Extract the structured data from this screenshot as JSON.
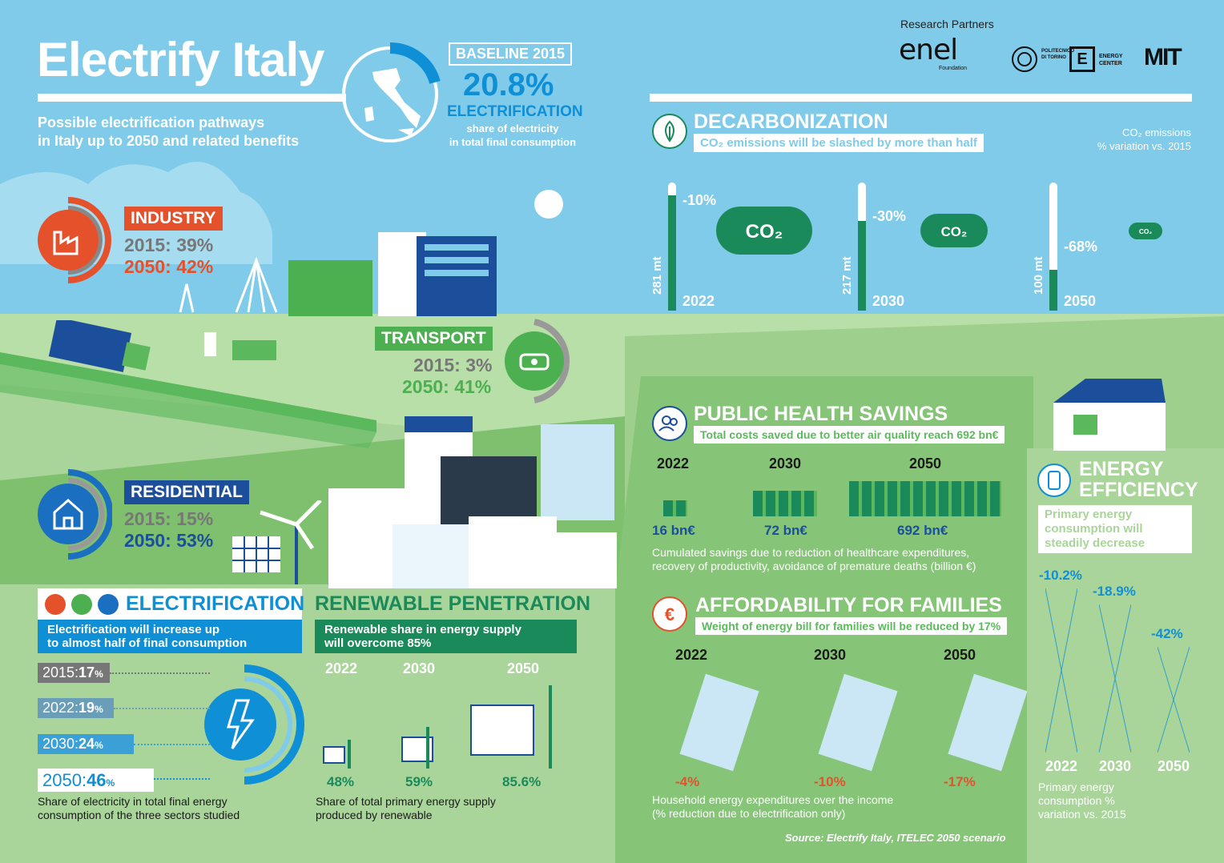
{
  "header": {
    "title": "Electrify Italy",
    "subtitle_line1": "Possible electrification pathways",
    "subtitle_line2": "in Italy up to 2050 and related benefits",
    "baseline_label": "BASELINE 2015",
    "baseline_value": "20.8%",
    "baseline_metric": "ELECTRIFICATION",
    "baseline_desc1": "share of electricity",
    "baseline_desc2": "in total final consumption",
    "baseline_fraction": 0.208
  },
  "partners": {
    "label": "Research Partners",
    "logo1": "enel",
    "logo1_sub": "Foundation",
    "logo2_text1": "POLITECNICO",
    "logo2_text2": "DI TORINO",
    "logo3_text1": "ENERGY",
    "logo3_text2": "CENTER",
    "logo4": "MIT"
  },
  "industry": {
    "label": "INDUSTRY",
    "y2015": "2015: 39%",
    "y2050": "2050: 42%"
  },
  "transport": {
    "label": "TRANSPORT",
    "y2015": "2015: 3%",
    "y2050": "2050: 41%"
  },
  "residential": {
    "label": "RESIDENTIAL",
    "y2015": "2015: 15%",
    "y2050": "2050: 53%"
  },
  "decarb": {
    "title": "DECARBONIZATION",
    "subtitle": "CO₂ emissions will be slashed by more than half",
    "legend1": "CO₂ emissions",
    "legend2": "% variation vs. 2015",
    "cloud_label": "CO₂",
    "bars": [
      {
        "year": "2022",
        "value": "281 mt",
        "pct": "-10%",
        "level": 0.9
      },
      {
        "year": "2030",
        "value": "217 mt",
        "pct": "-30%",
        "level": 0.7
      },
      {
        "year": "2050",
        "value": "100 mt",
        "pct": "-68%",
        "level": 0.32
      }
    ]
  },
  "health": {
    "title": "PUBLIC HEALTH SAVINGS",
    "subtitle": "Total costs saved due to better air quality reach 692 bn€",
    "items": [
      {
        "year": "2022",
        "value": "16 bn€"
      },
      {
        "year": "2030",
        "value": "72 bn€"
      },
      {
        "year": "2050",
        "value": "692 bn€"
      }
    ],
    "note1": "Cumulated savings due to reduction of healthcare expenditures,",
    "note2": "recovery of productivity, avoidance of premature deaths (billion €)"
  },
  "afford": {
    "title": "AFFORDABILITY FOR FAMILIES",
    "subtitle": "Weight of energy bill for families will be reduced by 17%",
    "items": [
      {
        "year": "2022",
        "value": "-4%"
      },
      {
        "year": "2030",
        "value": "-10%"
      },
      {
        "year": "2050",
        "value": "-17%"
      }
    ],
    "note1": "Household energy expenditures over the income",
    "note2": "(% reduction due to electrification only)",
    "source": "Source: Electrify Italy, ITELEC 2050 scenario"
  },
  "efficiency": {
    "title1": "ENERGY",
    "title2": "EFFICIENCY",
    "subtitle1": "Primary energy",
    "subtitle2": "consumption will",
    "subtitle3": "steadily decrease",
    "items": [
      {
        "year": "2022",
        "value": "-10.2%"
      },
      {
        "year": "2030",
        "value": "-18.9%"
      },
      {
        "year": "2050",
        "value": "-42%"
      }
    ],
    "note1": "Primary energy",
    "note2": "consumption %",
    "note3": "variation vs. 2015"
  },
  "electrification": {
    "title": "ELECTRIFICATION",
    "subtitle1": "Electrification will increase up",
    "subtitle2": "to almost half of final consumption",
    "rows": [
      {
        "year": "2015:",
        "value": "17",
        "unit": "%"
      },
      {
        "year": "2022:",
        "value": "19",
        "unit": "%"
      },
      {
        "year": "2030:",
        "value": "24",
        "unit": "%"
      },
      {
        "year": "2050:",
        "value": "46",
        "unit": "%"
      }
    ],
    "note1": "Share of electricity in total final energy",
    "note2": "consumption of the three sectors studied"
  },
  "renewable": {
    "title": "RENEWABLE PENETRATION",
    "subtitle1": "Renewable share in energy supply",
    "subtitle2": "will overcome 85%",
    "items": [
      {
        "year": "2022",
        "value": "48%"
      },
      {
        "year": "2030",
        "value": "59%"
      },
      {
        "year": "2050",
        "value": "85.6%"
      }
    ],
    "note1": "Share of total primary energy supply",
    "note2": "produced by renewable"
  },
  "colors": {
    "sky": "#7fcbe9",
    "green_dark": "#1a8a5a",
    "green_mid": "#5cb85c",
    "green_light": "#a9d59a",
    "blue": "#0f8fd6",
    "navy": "#1b4f9c",
    "orange": "#e4512b"
  }
}
